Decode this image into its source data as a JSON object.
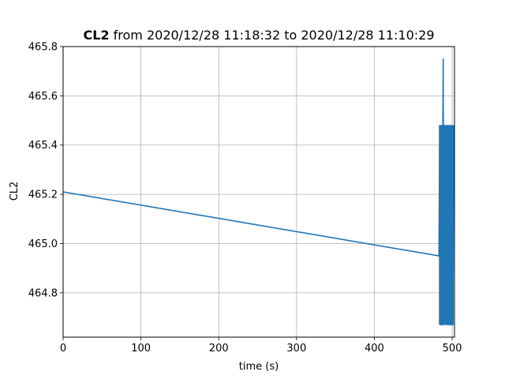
{
  "chart_data": {
    "type": "line",
    "title_bold": "CL2",
    "title_rest": " from 2020/12/28 11:18:32 to 2020/12/28 11:10:29",
    "xlabel": "time (s)",
    "ylabel": "CL2",
    "xlim": [
      0,
      503
    ],
    "ylim": [
      464.62,
      465.8
    ],
    "xticks": [
      0,
      100,
      200,
      300,
      400,
      500
    ],
    "xtick_labels": [
      "0",
      "100",
      "200",
      "300",
      "400",
      "500"
    ],
    "yticks": [
      464.8,
      465.0,
      465.2,
      465.4,
      465.6,
      465.8
    ],
    "ytick_labels": [
      "464.8",
      "465.0",
      "465.2",
      "465.4",
      "465.6",
      "465.8"
    ],
    "grid": true,
    "color": "#1f77b4",
    "series": [
      {
        "x": [
          0,
          483,
          484,
          485,
          486,
          487,
          488,
          488.5,
          489,
          490,
          491,
          492,
          493,
          494,
          495,
          496,
          497,
          498,
          499,
          500,
          501,
          502
        ],
        "y": [
          465.21,
          464.95,
          465.48,
          464.67,
          465.48,
          464.67,
          465.48,
          465.75,
          464.67,
          465.48,
          464.93,
          465.48,
          464.67,
          465.48,
          464.67,
          465.48,
          464.67,
          465.48,
          464.67,
          465.48,
          464.67,
          465.48
        ]
      }
    ]
  }
}
